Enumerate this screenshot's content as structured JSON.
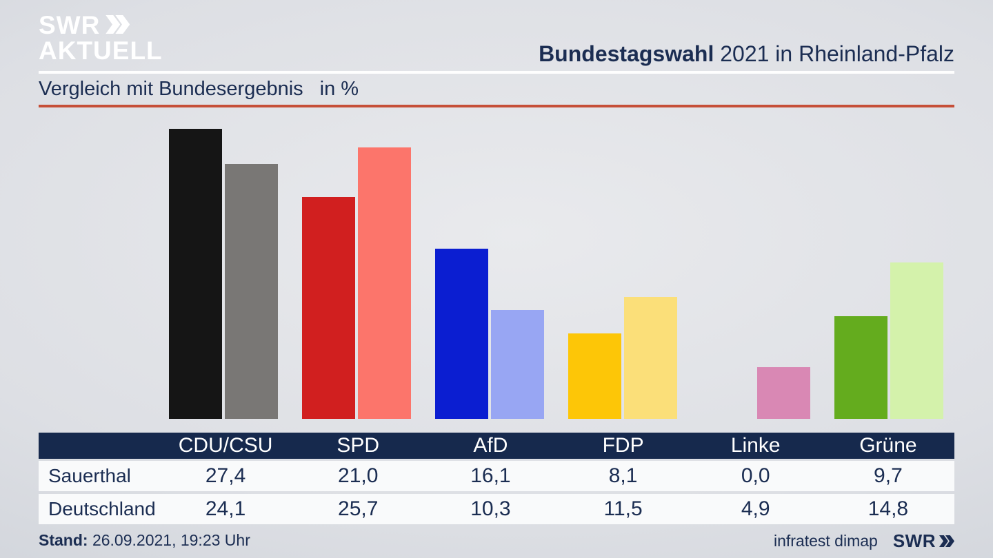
{
  "brand": {
    "logo_line1": "SWR",
    "logo_line2": "AKTUELL"
  },
  "header": {
    "title_bold": "Bundestagswahl",
    "title_rest": " 2021 in Rheinland-Pfalz"
  },
  "subtitle": {
    "text": "Vergleich mit Bundesergebnis",
    "unit": "in %"
  },
  "colors": {
    "accent_line": "#c64f38",
    "navy_text": "#1b2d52",
    "table_header_bg": "#16294d",
    "row_bg": "#f9fafb"
  },
  "chart_data": {
    "type": "bar",
    "title": "Vergleich mit Bundesergebnis in %",
    "categories": [
      "CDU/CSU",
      "SPD",
      "AfD",
      "FDP",
      "Linke",
      "Grüne"
    ],
    "series": [
      {
        "name": "Sauerthal",
        "values": [
          27.4,
          21.0,
          16.1,
          8.1,
          0.0,
          9.7
        ],
        "colors": [
          "#151515",
          "#d11f1f",
          "#0b1ed1",
          "#fdc607",
          null,
          "#64ac1e"
        ]
      },
      {
        "name": "Deutschland",
        "values": [
          24.1,
          25.7,
          10.3,
          11.5,
          4.9,
          14.8
        ],
        "colors": [
          "#797775",
          "#fc756b",
          "#98a6f3",
          "#fbdf79",
          "#d988b4",
          "#d4f2ab"
        ]
      }
    ],
    "xlabel": "",
    "ylabel": "%",
    "ylim": [
      0,
      27.5
    ],
    "grid": false,
    "legend_position": "none (series identified in table rows below)"
  },
  "table": {
    "columns": [
      "CDU/CSU",
      "SPD",
      "AfD",
      "FDP",
      "Linke",
      "Grüne"
    ],
    "rows": [
      {
        "label": "Sauerthal",
        "values": [
          "27,4",
          "21,0",
          "16,1",
          "8,1",
          "0,0",
          "9,7"
        ]
      },
      {
        "label": "Deutschland",
        "values": [
          "24,1",
          "25,7",
          "10,3",
          "11,5",
          "4,9",
          "14,8"
        ]
      }
    ]
  },
  "footer": {
    "stand_label": "Stand:",
    "stand_value": " 26.09.2021, 19:23 Uhr",
    "source": "infratest dimap",
    "source_logo": "SWR"
  }
}
